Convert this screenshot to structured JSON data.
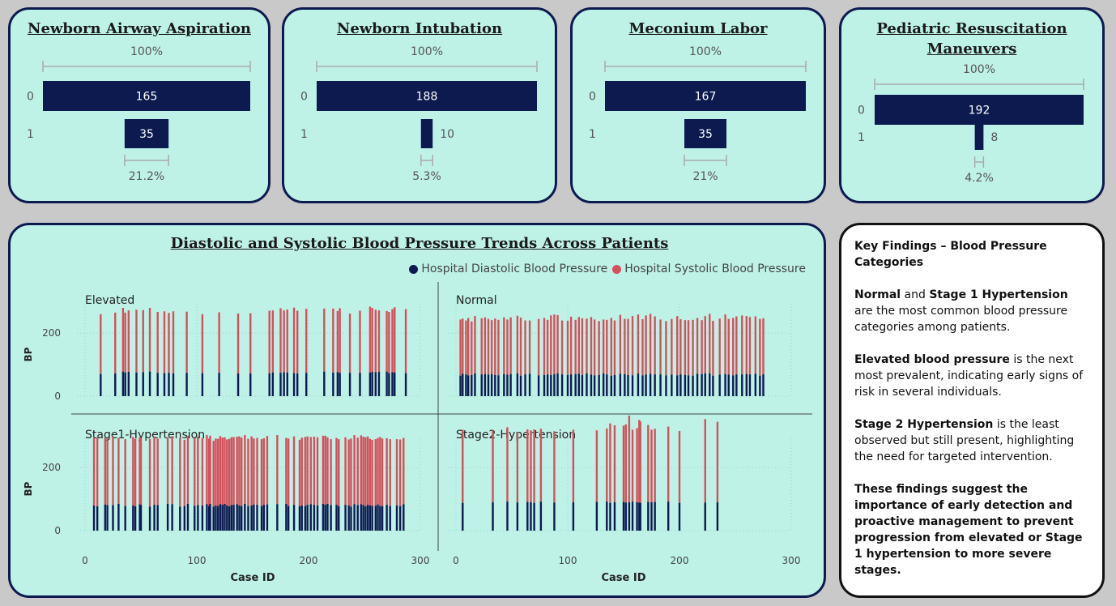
{
  "funnels": [
    {
      "title_lines": [
        "Newborn Airway Aspiration"
      ],
      "top_label": "100%",
      "bottom_label": "21.2%",
      "categories": [
        "0",
        "1"
      ],
      "values": [
        165,
        35
      ]
    },
    {
      "title_lines": [
        "Newborn Intubation"
      ],
      "top_label": "100%",
      "bottom_label": "5.3%",
      "categories": [
        "0",
        "1"
      ],
      "values": [
        188,
        10
      ]
    },
    {
      "title_lines": [
        "Meconium Labor"
      ],
      "top_label": "100%",
      "bottom_label": "21%",
      "categories": [
        "0",
        "1"
      ],
      "values": [
        167,
        35
      ]
    },
    {
      "title_lines": [
        "Pediatric Resuscitation",
        "Maneuvers"
      ],
      "top_label": "100%",
      "bottom_label": "4.2%",
      "categories": [
        "0",
        "1"
      ],
      "values": [
        192,
        8
      ]
    }
  ],
  "bp_chart": {
    "title": "Diastolic and Systolic Blood Pressure Trends Across Patients",
    "legend": [
      {
        "name": "Hospital Diastolic Blood Pressure",
        "color": "#0c1a4f"
      },
      {
        "name": "Hospital Systolic Blood Pressure",
        "color": "#d4505a"
      }
    ]
  },
  "findings": {
    "heading": "Key Findings – Blood Pressure Categories",
    "p1_b1": "Normal",
    "p1_t1": " and ",
    "p1_b2": "Stage 1 Hypertension",
    "p1_t2": " are the most common blood pressure categories among patients.",
    "p2_b1": "Elevated blood pressure",
    "p2_t1": " is the next most prevalent, indicating early signs of risk in several individuals.",
    "p3_b1": "Stage 2 Hypertension",
    "p3_t1": " is the least observed but still present, highlighting the need for targeted intervention.",
    "p4": "These findings suggest the importance of early detection and proactive management to prevent progression from elevated or Stage 1 hypertension to more severe stages."
  },
  "chart_data": [
    {
      "type": "bar",
      "title": "Newborn Airway Aspiration",
      "orientation": "funnel",
      "categories": [
        "0",
        "1"
      ],
      "values": [
        165,
        35
      ],
      "labels": [
        "100%",
        "21.2%"
      ]
    },
    {
      "type": "bar",
      "title": "Newborn Intubation",
      "orientation": "funnel",
      "categories": [
        "0",
        "1"
      ],
      "values": [
        188,
        10
      ],
      "labels": [
        "100%",
        "5.3%"
      ]
    },
    {
      "type": "bar",
      "title": "Meconium Labor",
      "orientation": "funnel",
      "categories": [
        "0",
        "1"
      ],
      "values": [
        167,
        35
      ],
      "labels": [
        "100%",
        "21%"
      ]
    },
    {
      "type": "bar",
      "title": "Pediatric Resuscitation Maneuvers",
      "orientation": "funnel",
      "categories": [
        "0",
        "1"
      ],
      "values": [
        192,
        8
      ],
      "labels": [
        "100%",
        "4.2%"
      ]
    },
    {
      "type": "bar",
      "stacked": true,
      "title": "Diastolic and Systolic Blood Pressure Trends Across Patients",
      "xlabel": "Case ID",
      "ylabel": "BP",
      "xlim": [
        0,
        300
      ],
      "ylim": [
        0,
        280
      ],
      "x_ticks": [
        "0",
        "100",
        "200",
        "300"
      ],
      "y_ticks": [
        "0",
        "200"
      ],
      "legend": "top-right",
      "series_names": [
        "Hospital Diastolic Blood Pressure",
        "Hospital Systolic Blood Pressure"
      ],
      "panels": [
        {
          "name": "Elevated",
          "x": [
            14,
            27,
            34,
            36,
            39,
            46,
            52,
            58,
            65,
            71,
            75,
            79,
            91,
            105,
            120,
            137,
            148,
            165,
            168,
            175,
            178,
            181,
            187,
            190,
            198,
            214,
            222,
            226,
            228,
            237,
            246,
            255,
            257,
            260,
            263,
            270,
            272,
            275,
            277,
            287
          ],
          "diastolic": [
            70,
            72,
            78,
            75,
            77,
            75,
            76,
            78,
            74,
            73,
            74,
            72,
            74,
            73,
            74,
            72,
            72,
            72,
            75,
            74,
            76,
            75,
            73,
            72,
            74,
            78,
            75,
            76,
            74,
            74,
            74,
            75,
            77,
            76,
            77,
            78,
            73,
            76,
            75,
            73
          ],
          "systolic": [
            190,
            193,
            202,
            190,
            195,
            199,
            197,
            202,
            193,
            196,
            190,
            197,
            194,
            187,
            192,
            190,
            191,
            199,
            197,
            205,
            196,
            200,
            208,
            199,
            203,
            200,
            203,
            194,
            205,
            188,
            197,
            209,
            203,
            198,
            195,
            192,
            194,
            200,
            207,
            203
          ]
        },
        {
          "name": "Normal",
          "x": [
            4,
            6,
            9,
            11,
            14,
            17,
            23,
            26,
            29,
            32,
            35,
            38,
            43,
            46,
            49,
            55,
            58,
            62,
            66,
            74,
            79,
            82,
            85,
            88,
            91,
            95,
            100,
            103,
            107,
            110,
            113,
            117,
            121,
            124,
            128,
            132,
            135,
            139,
            142,
            147,
            151,
            154,
            158,
            163,
            167,
            170,
            174,
            178,
            183,
            188,
            193,
            198,
            201,
            205,
            208,
            212,
            216,
            220,
            223,
            227,
            230,
            236,
            241,
            244,
            248,
            251,
            256,
            260,
            263,
            268,
            272,
            275
          ],
          "diastolic": [
            65,
            71,
            69,
            66,
            67,
            72,
            69,
            70,
            68,
            70,
            67,
            66,
            70,
            68,
            70,
            72,
            65,
            69,
            71,
            66,
            67,
            69,
            67,
            70,
            72,
            69,
            67,
            69,
            70,
            71,
            67,
            72,
            68,
            66,
            67,
            72,
            69,
            65,
            67,
            71,
            70,
            67,
            66,
            72,
            66,
            68,
            71,
            69,
            69,
            66,
            68,
            66,
            69,
            67,
            66,
            65,
            71,
            70,
            72,
            72,
            65,
            68,
            70,
            68,
            66,
            69,
            69,
            70,
            69,
            71,
            65,
            69
          ],
          "systolic": [
            178,
            175,
            171,
            182,
            170,
            182,
            178,
            180,
            177,
            171,
            179,
            176,
            180,
            175,
            180,
            183,
            184,
            171,
            169,
            179,
            181,
            173,
            189,
            189,
            185,
            171,
            172,
            183,
            172,
            180,
            180,
            174,
            183,
            177,
            171,
            171,
            173,
            183,
            173,
            187,
            175,
            178,
            188,
            187,
            178,
            188,
            190,
            184,
            174,
            172,
            177,
            188,
            175,
            174,
            175,
            177,
            177,
            171,
            182,
            189,
            174,
            178,
            189,
            177,
            182,
            184,
            187,
            184,
            182,
            182,
            180,
            178
          ]
        },
        {
          "name": "Stage1-Hypertension",
          "x": [
            8,
            11,
            18,
            20,
            25,
            30,
            36,
            43,
            45,
            49,
            50,
            58,
            62,
            65,
            74,
            78,
            85,
            89,
            92,
            98,
            101,
            105,
            109,
            111,
            112,
            115,
            117,
            119,
            121,
            123,
            125,
            127,
            129,
            131,
            133,
            136,
            138,
            140,
            143,
            146,
            149,
            151,
            154,
            158,
            160,
            163,
            172,
            180,
            182,
            187,
            192,
            194,
            197,
            199,
            202,
            205,
            208,
            213,
            215,
            217,
            220,
            225,
            227,
            233,
            236,
            238,
            241,
            244,
            247,
            249,
            251,
            253,
            255,
            257,
            260,
            262,
            264,
            266,
            270,
            273,
            279,
            282,
            285
          ],
          "diastolic": [
            80,
            77,
            83,
            81,
            81,
            85,
            78,
            80,
            77,
            84,
            82,
            76,
            82,
            81,
            85,
            84,
            76,
            78,
            85,
            79,
            81,
            80,
            84,
            78,
            85,
            76,
            80,
            78,
            84,
            82,
            85,
            80,
            77,
            81,
            82,
            84,
            80,
            78,
            85,
            78,
            80,
            83,
            82,
            78,
            82,
            83,
            84,
            85,
            78,
            82,
            77,
            80,
            78,
            82,
            84,
            82,
            80,
            85,
            82,
            85,
            81,
            82,
            78,
            82,
            80,
            76,
            84,
            81,
            84,
            81,
            77,
            82,
            80,
            79,
            79,
            83,
            78,
            78,
            82,
            78,
            80,
            78,
            84
          ],
          "systolic": [
            214,
            218,
            212,
            211,
            219,
            209,
            212,
            217,
            214,
            212,
            213,
            215,
            217,
            211,
            211,
            216,
            218,
            210,
            216,
            214,
            218,
            214,
            219,
            214,
            216,
            209,
            212,
            213,
            216,
            213,
            211,
            209,
            214,
            215,
            215,
            214,
            219,
            217,
            218,
            213,
            219,
            209,
            212,
            212,
            211,
            217,
            219,
            209,
            214,
            217,
            211,
            215,
            219,
            217,
            213,
            216,
            216,
            216,
            219,
            211,
            209,
            212,
            212,
            214,
            209,
            216,
            219,
            214,
            218,
            217,
            219,
            217,
            211,
            209,
            211,
            211,
            219,
            214,
            211,
            212,
            210,
            211,
            210
          ]
        },
        {
          "name": "Stage2-Hypertension",
          "x": [
            6,
            33,
            46,
            55,
            64,
            67,
            70,
            76,
            88,
            105,
            126,
            135,
            138,
            142,
            150,
            152,
            155,
            158,
            162,
            164,
            165,
            172,
            175,
            178,
            190,
            200,
            223,
            234
          ],
          "diastolic": [
            88,
            90,
            92,
            89,
            91,
            90,
            88,
            92,
            89,
            90,
            91,
            92,
            88,
            90,
            91,
            89,
            90,
            92,
            90,
            89,
            88,
            91,
            90,
            91,
            92,
            88,
            89,
            90
          ],
          "systolic": [
            232,
            228,
            236,
            222,
            230,
            228,
            233,
            231,
            226,
            230,
            227,
            232,
            252,
            244,
            242,
            248,
            275,
            228,
            235,
            262,
            258,
            244,
            230,
            232,
            238,
            228,
            265,
            255
          ]
        }
      ]
    }
  ]
}
